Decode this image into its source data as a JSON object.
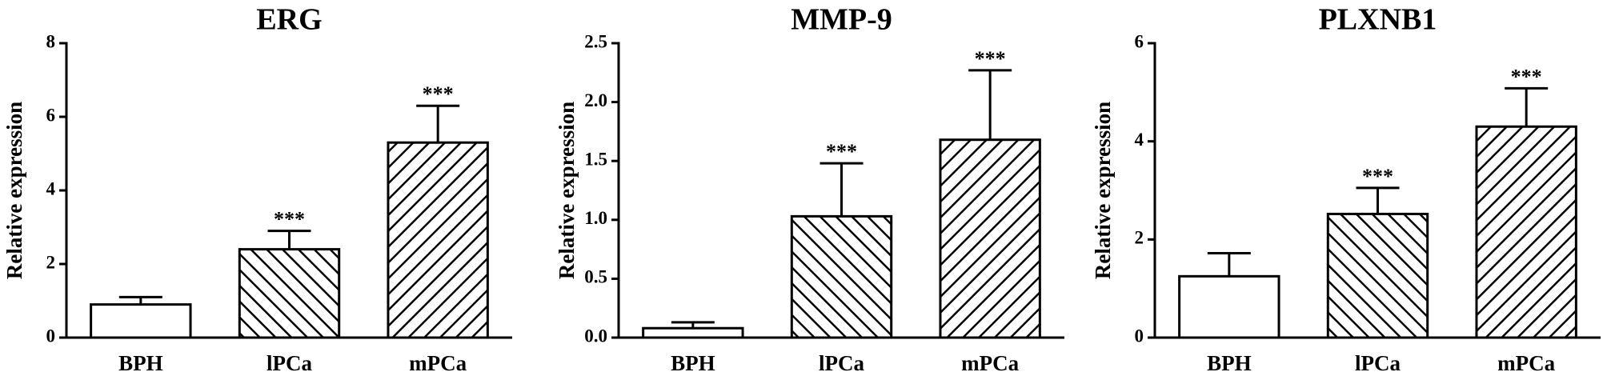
{
  "chart_data": [
    {
      "type": "bar",
      "title": "ERG",
      "y_label": "Relative expression",
      "categories": [
        "BPH",
        "lPCa",
        "mPCa"
      ],
      "values": [
        0.9,
        2.4,
        5.3
      ],
      "errors": [
        0.2,
        0.5,
        1.0
      ],
      "annotations": [
        null,
        "***",
        "***"
      ],
      "hatches": [
        "none",
        "backslash",
        "slash"
      ],
      "color": "#000000",
      "ylim": [
        0,
        8
      ],
      "yticks": [
        0,
        2,
        4,
        6,
        8
      ]
    },
    {
      "type": "bar",
      "title": "MMP-9",
      "y_label": "Relative expression",
      "categories": [
        "BPH",
        "lPCa",
        "mPCa"
      ],
      "values": [
        0.08,
        1.03,
        1.68
      ],
      "errors": [
        0.05,
        0.45,
        0.59
      ],
      "annotations": [
        null,
        "***",
        "***"
      ],
      "hatches": [
        "none",
        "backslash",
        "slash"
      ],
      "color": "#000000",
      "ylim": [
        0,
        2.5
      ],
      "yticks": [
        {
          "value": 0,
          "label": "0.0"
        },
        0.5,
        {
          "value": 1,
          "label": "1.0"
        },
        1.5,
        {
          "value": 2,
          "label": "2.0"
        },
        2.5
      ]
    },
    {
      "type": "bar",
      "title": "PLXNB1",
      "y_label": "Relative expression",
      "categories": [
        "BPH",
        "lPCa",
        "mPCa"
      ],
      "values": [
        1.25,
        2.52,
        4.3
      ],
      "errors": [
        0.47,
        0.53,
        0.78
      ],
      "annotations": [
        null,
        "***",
        "***"
      ],
      "hatches": [
        "none",
        "backslash",
        "slash"
      ],
      "color": "#000000",
      "ylim": [
        0,
        6
      ],
      "yticks": [
        0,
        2,
        4,
        6
      ]
    }
  ]
}
